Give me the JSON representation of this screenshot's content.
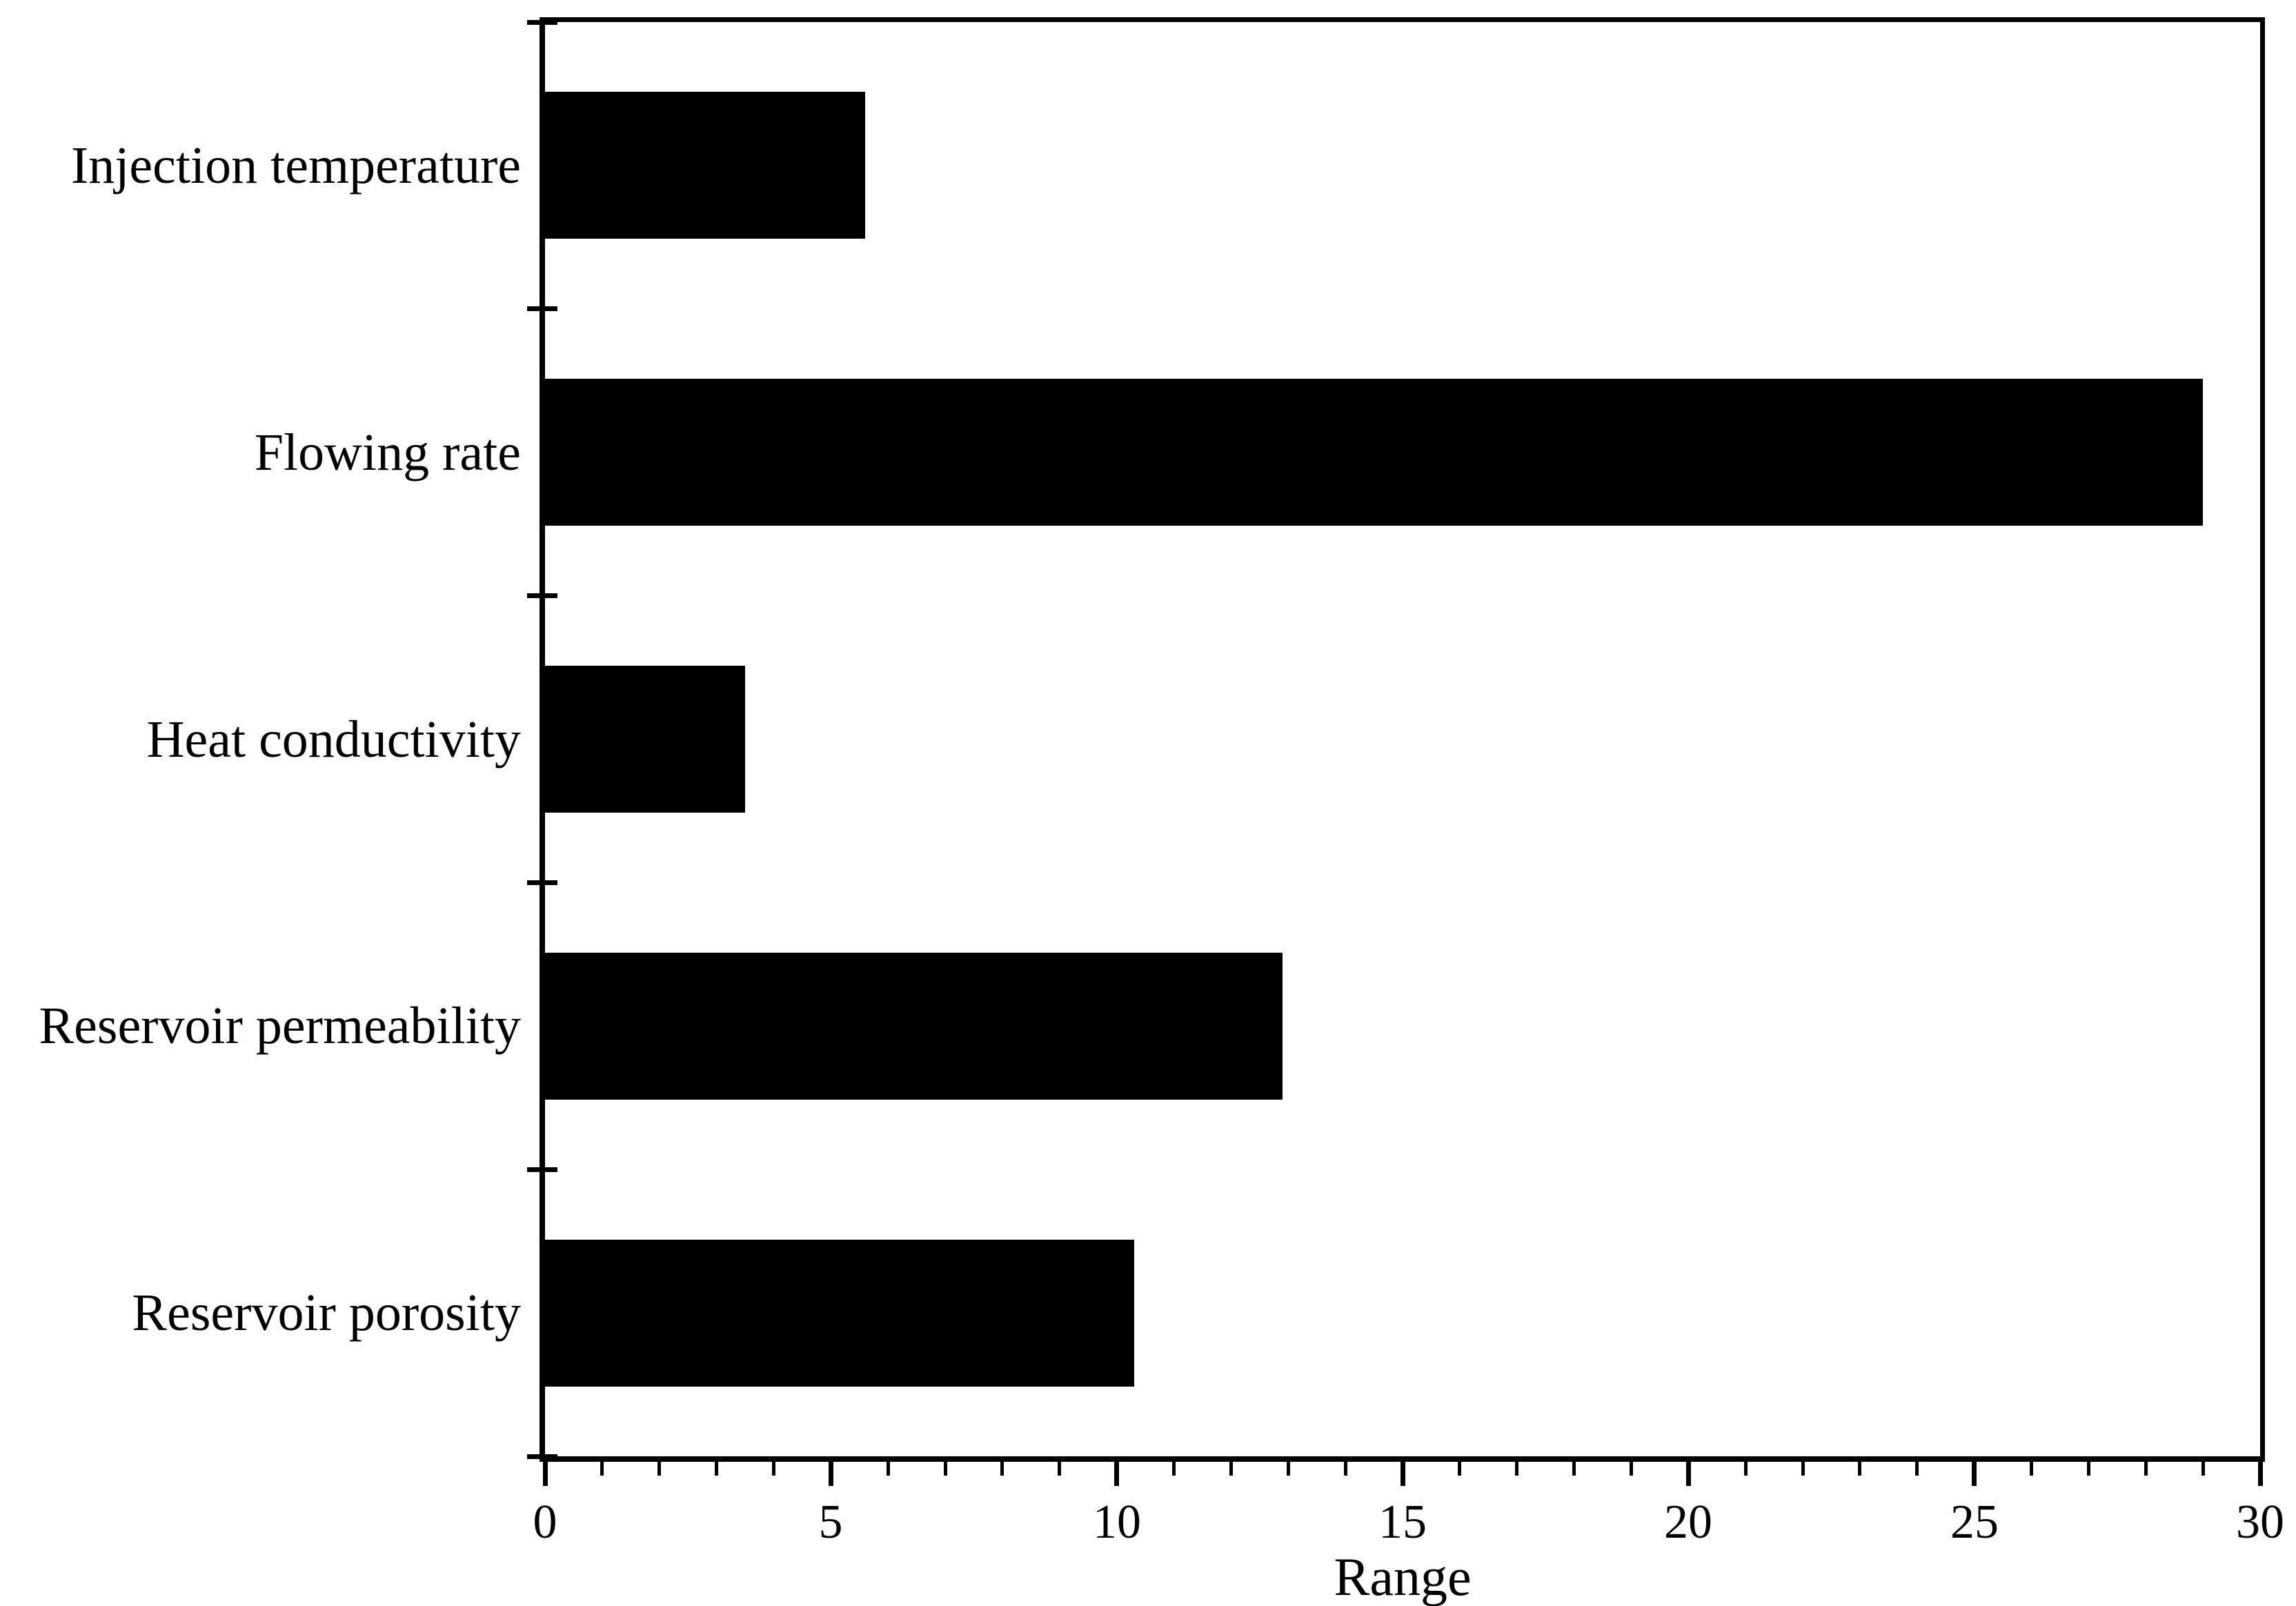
{
  "figure": {
    "background": "#ffffff"
  },
  "chart_data": {
    "type": "bar",
    "orientation": "horizontal",
    "title": "",
    "xlabel": "Range",
    "ylabel": "",
    "categories": [
      "Injection temperature",
      "Flowing rate",
      "Heat conductivity",
      "Reservoir permeability",
      "Reservoir porosity"
    ],
    "values": [
      5.6,
      29.0,
      3.5,
      12.9,
      10.3
    ],
    "xlim": [
      0,
      30
    ],
    "x_major_ticks": [
      0,
      5,
      10,
      15,
      20,
      25,
      30
    ],
    "x_minor_tick_interval": 1,
    "bar_color": "#000000",
    "axis_color": "#000000",
    "text_color": "#000000",
    "background_color": "#ffffff",
    "grid": false,
    "legend": false
  }
}
